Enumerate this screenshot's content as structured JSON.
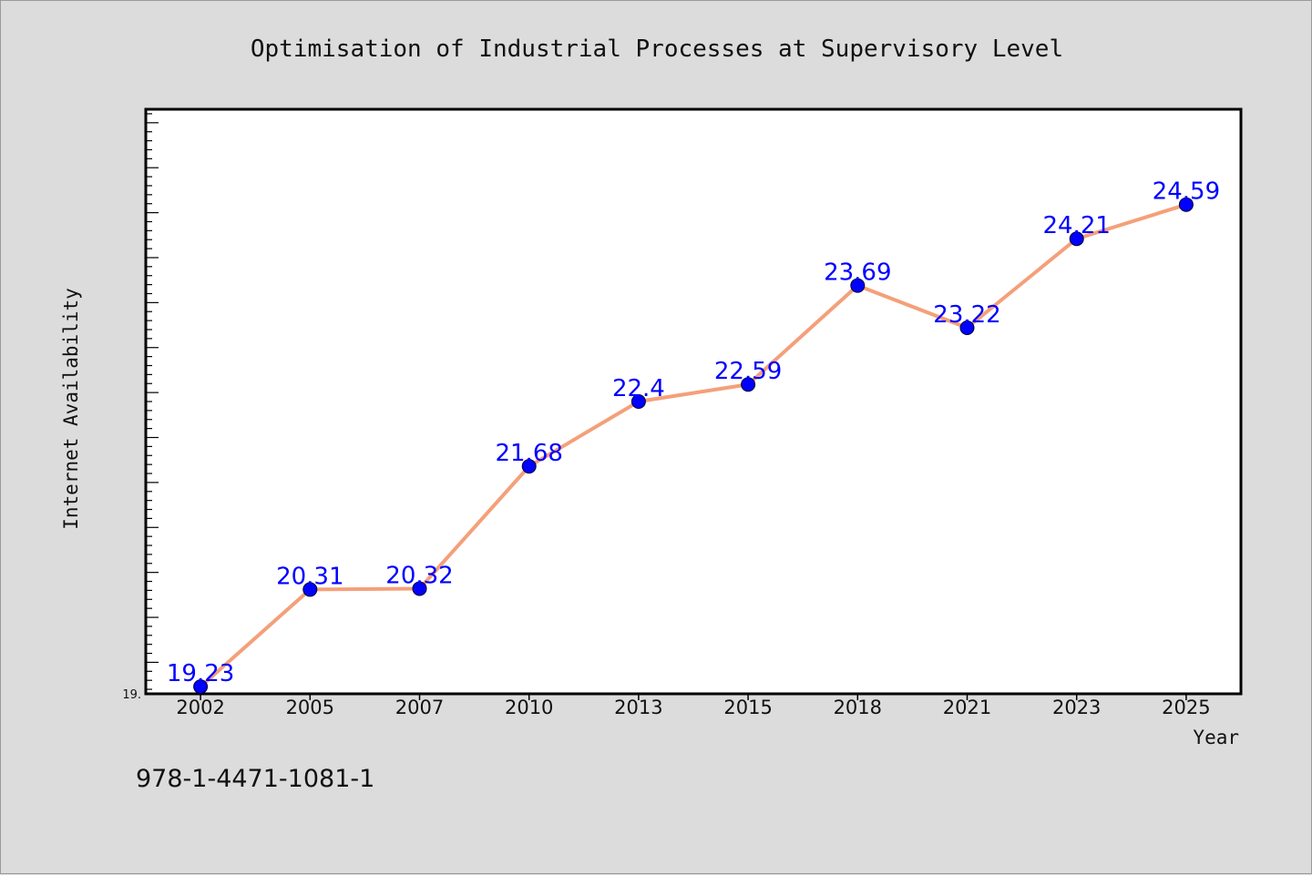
{
  "chart_data": {
    "type": "line",
    "title": "Optimisation of Industrial Processes at Supervisory Level",
    "xlabel": "Year",
    "ylabel": "Internet Availability",
    "categories": [
      "2002",
      "2005",
      "2007",
      "2010",
      "2013",
      "2015",
      "2018",
      "2021",
      "2023",
      "2025"
    ],
    "series": [
      {
        "values": [
          19.23,
          20.31,
          20.32,
          21.68,
          22.4,
          22.59,
          23.69,
          23.22,
          24.21,
          24.59
        ]
      }
    ],
    "data_labels": [
      "19.23",
      "20.31",
      "20.32",
      "21.68",
      "22.4",
      "22.59",
      "23.69",
      "23.22",
      "24.21",
      "24.59"
    ],
    "y_tick_label": "19.",
    "ylim": [
      19.15,
      25.65
    ],
    "grid": false,
    "line_color": "#f4a07a",
    "marker_color": "#0000ff",
    "label_color": "#0000ff"
  },
  "footer": {
    "isbn": "978-1-4471-1081-1"
  }
}
